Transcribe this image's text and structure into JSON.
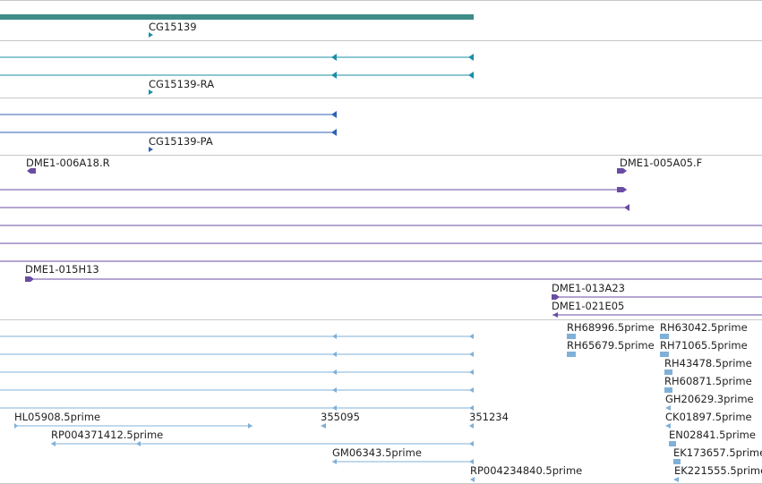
{
  "colors": {
    "gene_bar": "#3d8c88",
    "transcript": "#1a8fa6",
    "peptide": "#2f62b5",
    "clone": "#6a4ca3",
    "est": "#7fb0d8",
    "divider": "#c8c8c8"
  },
  "tracks": {
    "gene": {
      "label": "CG15139"
    },
    "transcripts": {
      "label": "CG15139-RA"
    },
    "peptides": {
      "label": "CG15139-PA"
    },
    "clones": {
      "labels": [
        "DME1-006A18.R",
        "DME1-005A05.F",
        "DME1-015H13",
        "DME1-013A23",
        "DME1-021E05"
      ]
    },
    "ests": {
      "labels": [
        "RH68996.5prime",
        "RH63042.5prime",
        "RH65679.5prime",
        "RH71065.5prime",
        "RH43478.5prime",
        "RH60871.5prime",
        "GH20629.3prime",
        "HL05908.5prime",
        "355095",
        "351234",
        "CK01897.5prime",
        "RP004371412.5prime",
        "EN02841.5prime",
        "GM06343.5prime",
        "EK173657.5prime",
        "RP004234840.5prime",
        "EK221555.5prime"
      ]
    }
  }
}
